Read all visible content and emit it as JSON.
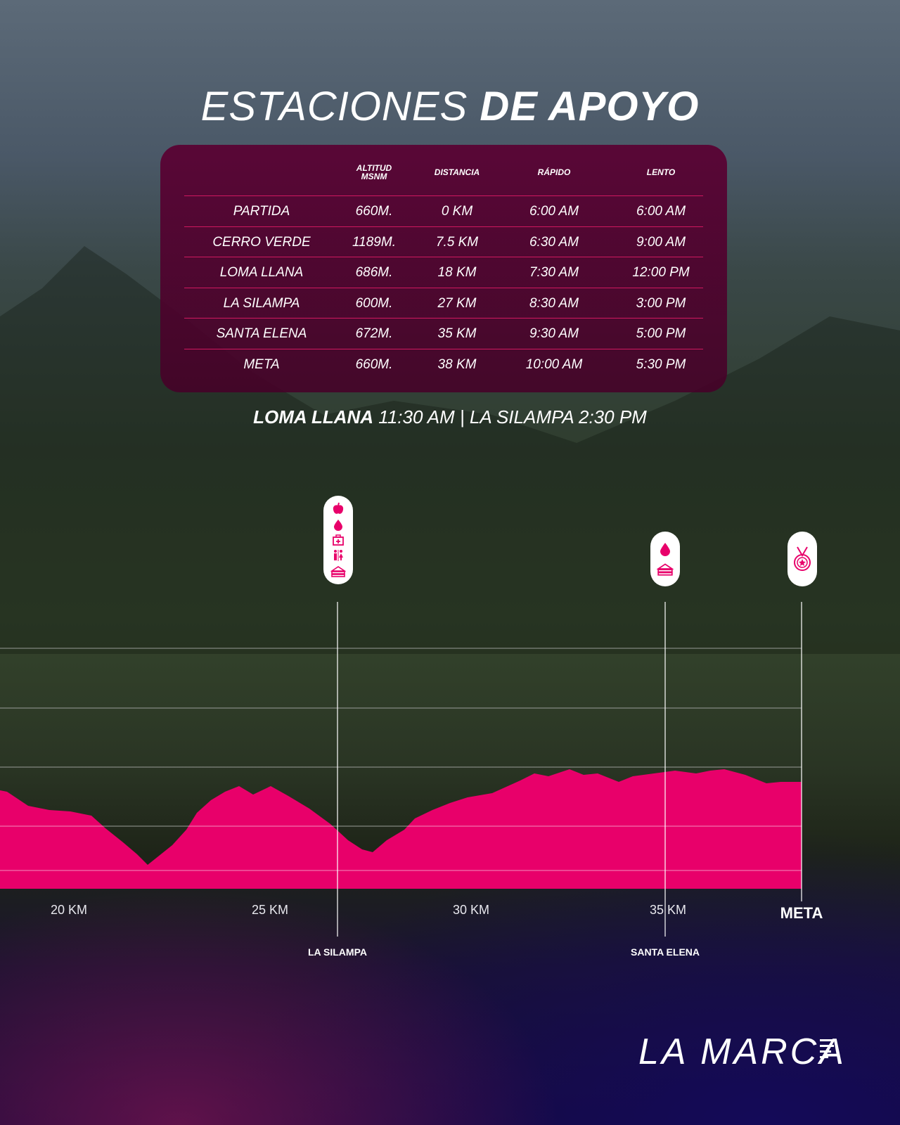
{
  "title": {
    "light": "ESTACIONES",
    "bold": "DE APOYO"
  },
  "table": {
    "headers": [
      "ALTITUD MSNM",
      "DISTANCIA",
      "RÁPIDO",
      "LENTO"
    ],
    "rows": [
      [
        "PARTIDA",
        "660M.",
        "0 KM",
        "6:00 AM",
        "6:00 AM"
      ],
      [
        "CERRO VERDE",
        "1189M.",
        "7.5 KM",
        "6:30 AM",
        "9:00 AM"
      ],
      [
        "LOMA LLANA",
        "686M.",
        "18 KM",
        "7:30 AM",
        "12:00 PM"
      ],
      [
        "LA SILAMPA",
        "600M.",
        "27 KM",
        "8:30 AM",
        "3:00 PM"
      ],
      [
        "SANTA ELENA",
        "672M.",
        "35 KM",
        "9:30 AM",
        "5:00 PM"
      ],
      [
        "META",
        "660M.",
        "38 KM",
        "10:00 AM",
        "5:30 PM"
      ]
    ]
  },
  "note": {
    "part1_bold": "LOMA LLANA",
    "part2": "11:30 AM | LA SILAMPA 2:30 PM"
  },
  "profile": {
    "axis_ticks": [
      "20 KM",
      "25 KM",
      "30 KM",
      "35 KM"
    ],
    "stations": [
      "LA SILAMPA",
      "SANTA ELENA"
    ],
    "finish": "META",
    "fill_color": "#e8006a"
  },
  "markers": {
    "la_silampa": [
      "apple-icon",
      "water-drop-icon",
      "first-aid-kit-icon",
      "restroom-icon",
      "sandwich-icon"
    ],
    "santa_elena": [
      "water-drop-icon",
      "sandwich-icon"
    ],
    "meta": [
      "medal-icon"
    ]
  },
  "brand": {
    "logo": "LA MARCA"
  },
  "colors": {
    "accent": "#e8006a",
    "table_bg": "#5a0032",
    "row_line": "#d0185f"
  }
}
